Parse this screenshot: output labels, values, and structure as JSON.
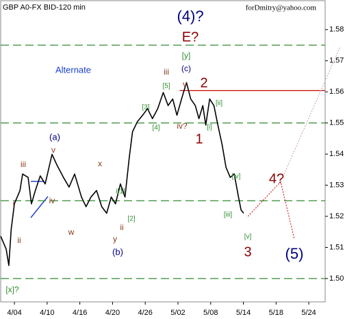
{
  "chart_data": {
    "type": "line",
    "title": "GBP A0-FX BID-120 min",
    "subtitle": "forDmitry@yahoo.com",
    "x": [
      -0.42,
      -0.25,
      -0.17,
      -0.1,
      0,
      0.17,
      0.25,
      0.42,
      0.52,
      0.63,
      0.79,
      0.94,
      1.15,
      1.29,
      1.5,
      1.67,
      1.84,
      2.05,
      2.19,
      2.34,
      2.51,
      2.67,
      2.82,
      2.96,
      3.09,
      3.24,
      3.38,
      3.51,
      3.61,
      3.76,
      3.92,
      4.07,
      4.22,
      4.38,
      4.55,
      4.7,
      4.84,
      4.97,
      5.11,
      5.26,
      5.39,
      5.53,
      5.64,
      5.76,
      5.85,
      5.97,
      6.1,
      6.22,
      6.35,
      6.47,
      6.6,
      6.72,
      6.85,
      6.93,
      7.01
    ],
    "series": [
      {
        "color": "#000000",
        "values": [
          1.5136,
          1.5094,
          1.5042,
          1.5157,
          1.5241,
          1.5283,
          1.5336,
          1.5325,
          1.524,
          1.528,
          1.533,
          1.5304,
          1.5399,
          1.5367,
          1.5325,
          1.5294,
          1.5336,
          1.5262,
          1.5231,
          1.5262,
          1.5283,
          1.5231,
          1.521,
          1.5262,
          1.524,
          1.5304,
          1.5262,
          1.5388,
          1.5472,
          1.5504,
          1.5525,
          1.5546,
          1.5514,
          1.5546,
          1.5598,
          1.5556,
          1.5577,
          1.5525,
          1.5577,
          1.563,
          1.5577,
          1.5556,
          1.5514,
          1.5556,
          1.5493,
          1.5577,
          1.5556,
          1.5493,
          1.543,
          1.5357,
          1.5325,
          1.5336,
          1.5262,
          1.522,
          1.521
        ]
      }
    ],
    "xlim": [
      -0.42,
      9.5
    ],
    "ylim": [
      1.4925,
      1.5893
    ],
    "xticks": [
      {
        "value": 0,
        "label": "4/04"
      },
      {
        "value": 1,
        "label": "4/10"
      },
      {
        "value": 2,
        "label": "4/16"
      },
      {
        "value": 3,
        "label": "4/20"
      },
      {
        "value": 4,
        "label": "4/26"
      },
      {
        "value": 5,
        "label": "5/02"
      },
      {
        "value": 6,
        "label": "5/08"
      },
      {
        "value": 7,
        "label": "5/14"
      },
      {
        "value": 8,
        "label": "5/18"
      },
      {
        "value": 9,
        "label": "5/24"
      }
    ],
    "yticks": [
      {
        "value": 1.5,
        "label": "1.50"
      },
      {
        "value": 1.51,
        "label": "1.51"
      },
      {
        "value": 1.52,
        "label": "1.52"
      },
      {
        "value": 1.53,
        "label": "1.53"
      },
      {
        "value": 1.54,
        "label": "1.54"
      },
      {
        "value": 1.55,
        "label": "1.55"
      },
      {
        "value": 1.56,
        "label": "1.56"
      },
      {
        "value": 1.57,
        "label": "1.57"
      },
      {
        "value": 1.58,
        "label": "1.58"
      }
    ],
    "levels": [
      {
        "value": 1.575,
        "color": "#2e8b2e"
      },
      {
        "value": 1.55,
        "color": "#2e8b2e"
      },
      {
        "value": 1.525,
        "color": "#2e8b2e"
      },
      {
        "value": 1.5,
        "color": "#2e8b2e"
      },
      {
        "value": 1.5604,
        "color": "#cc0000",
        "from": 5.05
      }
    ],
    "projections": [
      {
        "color": "#cc0000",
        "x": [
          7.14,
          8.14,
          8.56
        ],
        "y": [
          1.52,
          1.5311,
          1.5126
        ]
      },
      {
        "color": "#c8a0a0",
        "x": [
          8.14,
          9.96
        ],
        "y": [
          1.5311,
          1.5745
        ]
      }
    ],
    "annotations": [
      {
        "text": "(4)?",
        "color": "#000080"
      },
      {
        "text": "E?",
        "color": "#8b0000"
      },
      {
        "text": "[y]",
        "color": "#2e8b2e"
      },
      {
        "text": "(c)",
        "color": "#000080"
      },
      {
        "text": "iii",
        "color": "#8b3a1a"
      },
      {
        "text": "v",
        "color": "#8b3a1a"
      },
      {
        "text": "[5]",
        "color": "#2e8b2e"
      },
      {
        "text": "2",
        "color": "#8b0000"
      },
      {
        "text": "[3]",
        "color": "#2e8b2e"
      },
      {
        "text": "[ii]",
        "color": "#2e8b2e"
      },
      {
        "text": "[i]",
        "color": "#2e8b2e"
      },
      {
        "text": "iv?",
        "color": "#8b3a1a"
      },
      {
        "text": "1",
        "color": "#8b0000"
      },
      {
        "text": "[4]",
        "color": "#2e8b2e"
      },
      {
        "text": "(a)",
        "color": "#000080"
      },
      {
        "text": "v",
        "color": "#8b3a1a"
      },
      {
        "text": "x",
        "color": "#8b3a1a"
      },
      {
        "text": "iii",
        "color": "#8b3a1a"
      },
      {
        "text": "i",
        "color": "#8b3a1a"
      },
      {
        "text": "iv",
        "color": "#8b3a1a"
      },
      {
        "text": "ii",
        "color": "#8b3a1a"
      },
      {
        "text": "[iv]",
        "color": "#2e8b2e"
      },
      {
        "text": "4?",
        "color": "#8b0000"
      },
      {
        "text": "i[1]",
        "color": "#2e8b2e"
      },
      {
        "text": "[2]",
        "color": "#2e8b2e"
      },
      {
        "text": "ii",
        "color": "#8b3a1a"
      },
      {
        "text": "[iii]",
        "color": "#2e8b2e"
      },
      {
        "text": "w",
        "color": "#8b3a1a"
      },
      {
        "text": "y",
        "color": "#8b3a1a"
      },
      {
        "text": "(b)",
        "color": "#000080"
      },
      {
        "text": "[v]",
        "color": "#2e8b2e"
      },
      {
        "text": "3",
        "color": "#8b0000"
      },
      {
        "text": "(5)",
        "color": "#000080"
      },
      {
        "text": "[x]?",
        "color": "#2e8b2e"
      },
      {
        "text": "Alternate",
        "color": "#1a3fd0"
      }
    ]
  }
}
